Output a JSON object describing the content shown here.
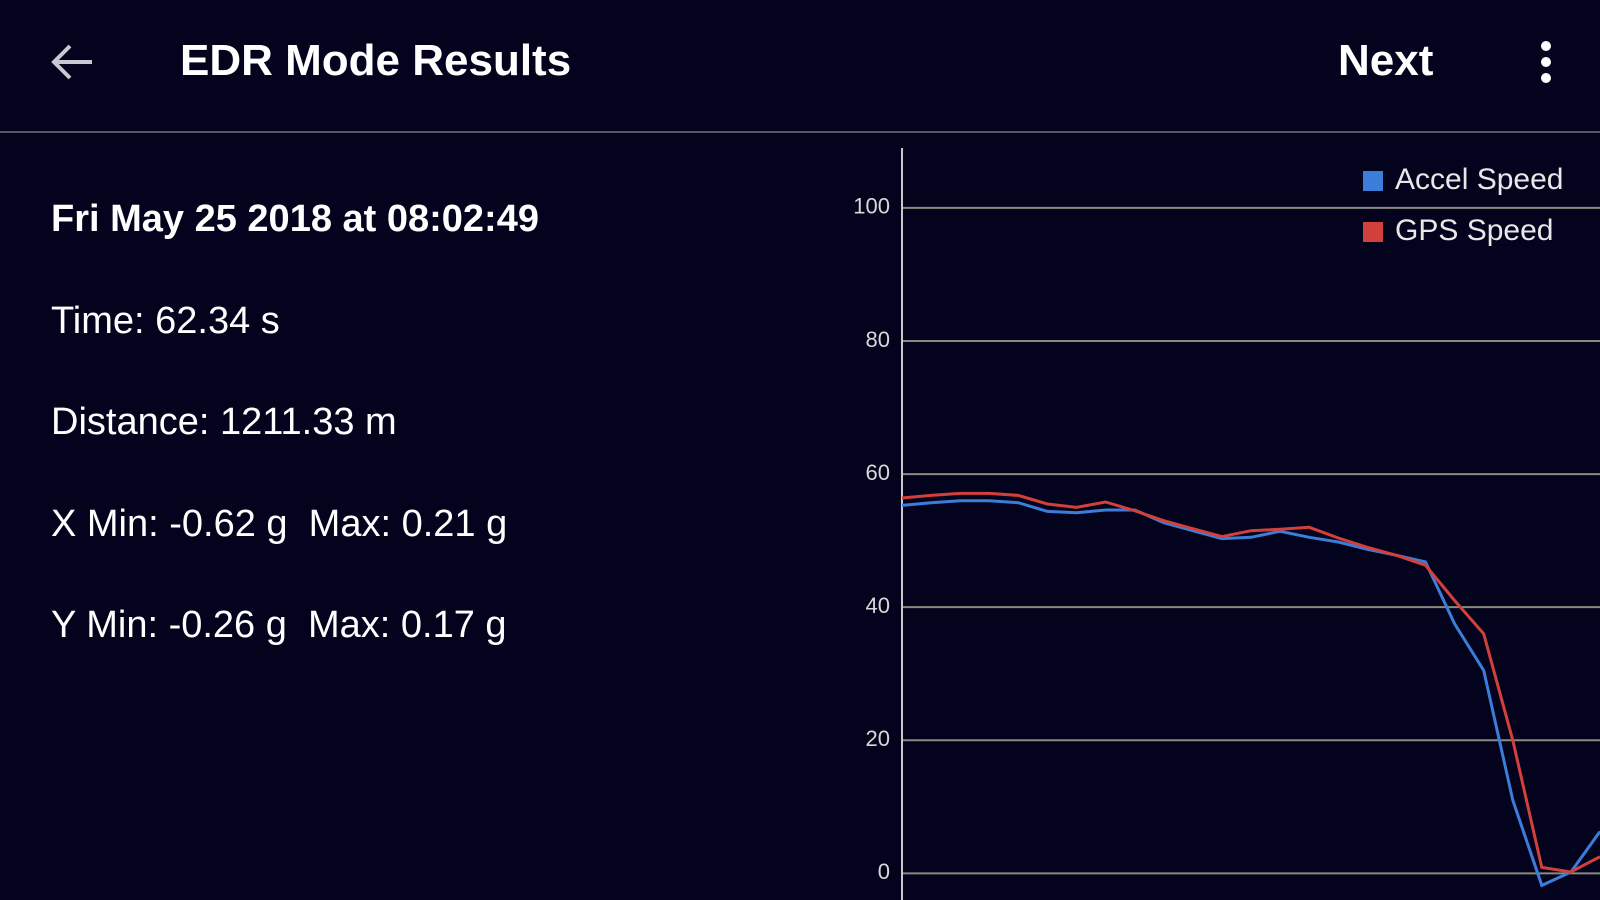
{
  "header": {
    "title": "EDR Mode Results",
    "action": "Next"
  },
  "info": [
    "Fri May 25 2018 at 08:02:49",
    "Time: 62.34 s",
    "Distance: 1211.33 m",
    "X Min: -0.62 g  Max: 0.21 g",
    "Y Min: -0.26 g  Max: 0.17 g"
  ],
  "chart_data": {
    "type": "line",
    "series": [
      {
        "name": "Accel Speed",
        "color": "#3b7dd8",
        "values": [
          55.3,
          55.7,
          56,
          56,
          55.7,
          54.4,
          54.2,
          54.6,
          54.6,
          52.7,
          51.5,
          50.3,
          50.5,
          51.4,
          50.5,
          49.8,
          48.7,
          47.8,
          46.8,
          37.5,
          30.5,
          11,
          -1.8,
          0.2,
          6.3
        ]
      },
      {
        "name": "GPS Speed",
        "color": "#d2403c",
        "values": [
          56.4,
          56.8,
          57.1,
          57.1,
          56.8,
          55.5,
          55,
          55.8,
          54.5,
          53,
          51.8,
          50.6,
          51.5,
          51.7,
          52,
          50.4,
          49,
          47.8,
          46.3,
          41,
          36,
          20,
          0.9,
          0.2,
          2.5
        ]
      }
    ],
    "ylim": [
      -4,
      109
    ],
    "yticks": [
      0,
      20,
      40,
      60,
      80,
      100
    ],
    "grid": true,
    "legend": "top-right"
  }
}
